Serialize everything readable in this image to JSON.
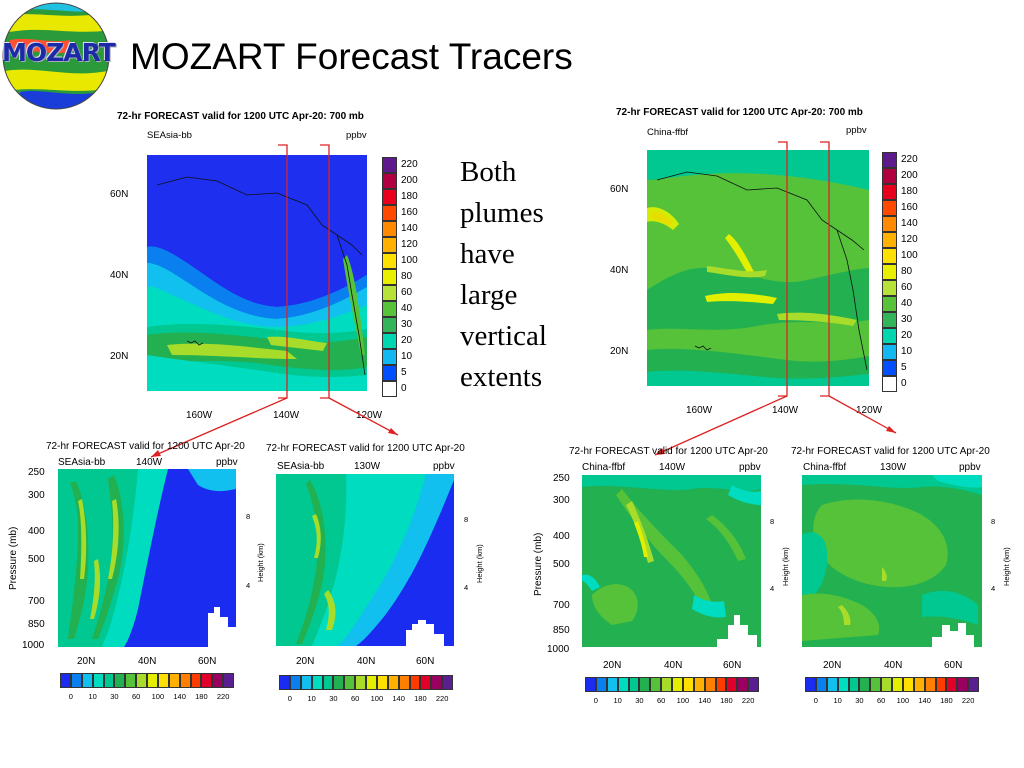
{
  "slide": {
    "title": "MOZART Forecast Tracers",
    "logo_text": "MOZART",
    "side_text": [
      "Both",
      "plumes",
      "have",
      "large",
      "vertical",
      "extents"
    ]
  },
  "maps": [
    {
      "title": "72-hr FORECAST valid for 1200 UTC Apr-20: 700 mb",
      "tracer": "SEAsia-bb",
      "units": "ppbv",
      "lat_labels": [
        "60N",
        "40N",
        "20N"
      ],
      "lon_labels": [
        "160W",
        "140W",
        "120W"
      ],
      "colorbar_labels": [
        "220",
        "200",
        "180",
        "160",
        "140",
        "120",
        "100",
        "80",
        "60",
        "40",
        "30",
        "20",
        "10",
        "5",
        "0"
      ]
    },
    {
      "title": "72-hr FORECAST valid for 1200 UTC Apr-20: 700 mb",
      "tracer": "China-ffbf",
      "units": "ppbv",
      "lat_labels": [
        "60N",
        "40N",
        "20N"
      ],
      "lon_labels": [
        "160W",
        "140W",
        "120W"
      ],
      "colorbar_labels": [
        "220",
        "200",
        "180",
        "160",
        "140",
        "120",
        "100",
        "80",
        "60",
        "40",
        "30",
        "20",
        "10",
        "5",
        "0"
      ]
    }
  ],
  "sections": [
    {
      "title": "72-hr FORECAST valid for 1200 UTC Apr-20",
      "tracer": "SEAsia-bb",
      "lon": "140W",
      "units": "ppbv",
      "y_axis_label": "Pressure (mb)",
      "pressure_labels": [
        "250",
        "300",
        "400",
        "500",
        "700",
        "850",
        "1000"
      ],
      "x_labels": [
        "20N",
        "40N",
        "60N"
      ],
      "height_axis_label": "Height (km)",
      "height_labels": [
        "8",
        "4"
      ],
      "colorbar_labels": [
        "0",
        "10",
        "30",
        "60",
        "100",
        "140",
        "180",
        "220"
      ]
    },
    {
      "title": "72-hr FORECAST valid for 1200 UTC Apr-20",
      "tracer": "SEAsia-bb",
      "lon": "130W",
      "units": "ppbv",
      "pressure_labels": [],
      "x_labels": [
        "20N",
        "40N",
        "60N"
      ],
      "height_axis_label": "Height (km)",
      "height_labels": [
        "8",
        "4"
      ],
      "colorbar_labels": [
        "0",
        "10",
        "30",
        "60",
        "100",
        "140",
        "180",
        "220"
      ]
    },
    {
      "title": "72-hr FORECAST valid for 1200 UTC Apr-20",
      "tracer": "China-ffbf",
      "lon": "140W",
      "units": "ppbv",
      "y_axis_label": "Pressure (mb)",
      "pressure_labels": [
        "250",
        "300",
        "400",
        "500",
        "700",
        "850",
        "1000"
      ],
      "x_labels": [
        "20N",
        "40N",
        "60N"
      ],
      "height_axis_label": "Height (km)",
      "height_labels": [
        "8",
        "4"
      ],
      "colorbar_labels": [
        "0",
        "10",
        "30",
        "60",
        "100",
        "140",
        "180",
        "220"
      ]
    },
    {
      "title": "72-hr FORECAST valid for 1200 UTC Apr-20",
      "tracer": "China-ffbf",
      "lon": "130W",
      "units": "ppbv",
      "pressure_labels": [],
      "x_labels": [
        "20N",
        "40N",
        "60N"
      ],
      "height_axis_label": "Height (km)",
      "height_labels": [
        "8",
        "4"
      ],
      "colorbar_labels": [
        "0",
        "10",
        "30",
        "60",
        "100",
        "140",
        "180",
        "220"
      ]
    }
  ],
  "colors": {
    "cb_vertical": [
      "#5e1a8c",
      "#b00040",
      "#e8001c",
      "#ff4a00",
      "#ff8a00",
      "#ffb000",
      "#ffe100",
      "#e8f000",
      "#b7e23a",
      "#57c23a",
      "#34b45a",
      "#00d7b0",
      "#14b8f0",
      "#0050ff",
      "#ffffff"
    ],
    "cb_horizontal": [
      "#1a2cf0",
      "#0a80f0",
      "#12c0f0",
      "#00dcc0",
      "#00c890",
      "#22b050",
      "#55c23a",
      "#a8dc2a",
      "#e2f000",
      "#ffe000",
      "#ffb000",
      "#ff8000",
      "#ff3c00",
      "#e0002a",
      "#9a0060",
      "#5a1e90"
    ],
    "annotation": "#dd2222"
  }
}
